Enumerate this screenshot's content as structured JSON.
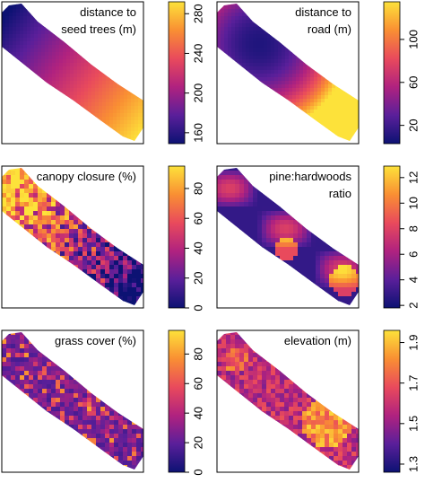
{
  "chart_data": [
    {
      "type": "map",
      "title": [
        "distance to",
        "seed trees (m)"
      ],
      "clim": [
        149,
        292
      ],
      "cticks": [
        160,
        200,
        240,
        280
      ],
      "colormap": [
        "#0c1273",
        "#5a1f9a",
        "#b0227f",
        "#e94a5c",
        "#f98f33",
        "#fde23a"
      ]
    },
    {
      "type": "map",
      "title": [
        "distance to",
        "road (m)"
      ],
      "clim": [
        3,
        135
      ],
      "cticks": [
        20,
        60,
        100
      ],
      "colormap": [
        "#0c1273",
        "#5a1f9a",
        "#b0227f",
        "#e94a5c",
        "#f98f33",
        "#fde23a"
      ]
    },
    {
      "type": "map",
      "title": [
        "canopy closure (%)"
      ],
      "clim": [
        0,
        95
      ],
      "cticks": [
        0,
        20,
        40,
        60,
        80
      ],
      "colormap": [
        "#0c1273",
        "#5a1f9a",
        "#b0227f",
        "#e94a5c",
        "#f98f33",
        "#fde23a"
      ]
    },
    {
      "type": "map",
      "title": [
        "pine:hardwoods",
        "ratio"
      ],
      "clim": [
        1.8,
        12.9
      ],
      "cticks": [
        2,
        4,
        6,
        8,
        10,
        12
      ],
      "colormap": [
        "#0c1273",
        "#5a1f9a",
        "#b0227f",
        "#e94a5c",
        "#f98f33",
        "#fde23a"
      ]
    },
    {
      "type": "map",
      "title": [
        "grass cover (%)"
      ],
      "clim": [
        0,
        96
      ],
      "cticks": [
        0,
        20,
        40,
        60,
        80
      ],
      "colormap": [
        "#0c1273",
        "#5a1f9a",
        "#b0227f",
        "#e94a5c",
        "#f98f33",
        "#fde23a"
      ]
    },
    {
      "type": "map",
      "title": [
        "elevation (m)"
      ],
      "clim": [
        1.26,
        1.96
      ],
      "cticks": [
        1.3,
        1.5,
        1.7,
        1.9
      ],
      "colormap": [
        "#0c1273",
        "#5a1f9a",
        "#b0227f",
        "#e94a5c",
        "#f98f33",
        "#fde23a"
      ]
    }
  ]
}
